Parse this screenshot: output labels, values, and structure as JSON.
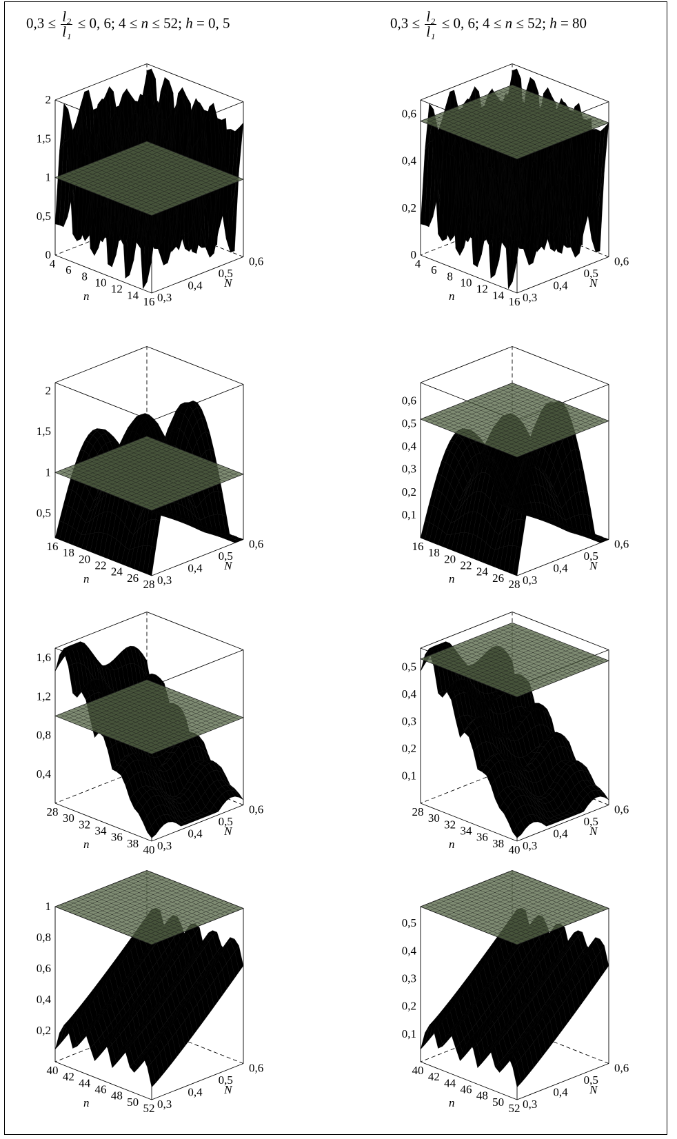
{
  "headers": [
    {
      "prefix": "0,3 ≤ ",
      "num": "l₂",
      "den": "l₁",
      "suffix": " ≤ 0, 6;   4 ≤ ",
      "nvar": "n",
      "mid": " ≤ 52;   ",
      "hvar": "h",
      "hval": " = 0, 5"
    },
    {
      "prefix": "0,3 ≤ ",
      "num": "l₂",
      "den": "l₁",
      "suffix": " ≤ 0, 6;   4 ≤ ",
      "nvar": "n",
      "mid": " ≤ 52;   ",
      "hvar": "h",
      "hval": " = 80"
    }
  ],
  "chart_data": [
    {
      "type": "surface3d",
      "column": "h = 0,5",
      "xlabel": "n",
      "ylabel": "N",
      "x_ticks": [
        "4",
        "6",
        "8",
        "10",
        "12",
        "14",
        "16"
      ],
      "y_ticks": [
        "0,3",
        "0,4",
        "0,5",
        "0,6"
      ],
      "z_ticks": [
        "0",
        "0,5",
        "1",
        "1,5",
        "2"
      ],
      "plane_z": 1.0,
      "zlim": [
        0,
        2
      ],
      "shape": "peaks",
      "colors": [
        "#3a3a7a",
        "#c94b6a",
        "#56d64a"
      ]
    },
    {
      "type": "surface3d",
      "column": "h = 80",
      "xlabel": "n",
      "ylabel": "N",
      "x_ticks": [
        "4",
        "6",
        "8",
        "10",
        "12",
        "14",
        "16"
      ],
      "y_ticks": [
        "0,3",
        "0,4",
        "0,5",
        "0,6"
      ],
      "z_ticks": [
        "0",
        "0,2",
        "0,4",
        "0,6"
      ],
      "plane_z": 0.57,
      "zlim": [
        0,
        0.66
      ],
      "shape": "peaks",
      "colors": [
        "#4a3a8a",
        "#c85a80",
        "#6ad66a"
      ]
    },
    {
      "type": "surface3d",
      "column": "h = 0,5",
      "xlabel": "n",
      "ylabel": "N",
      "x_ticks": [
        "16",
        "18",
        "20",
        "22",
        "24",
        "26",
        "28"
      ],
      "y_ticks": [
        "0,3",
        "0,4",
        "0,5",
        "0,6"
      ],
      "z_ticks": [
        "0,5",
        "1",
        "1,5",
        "2"
      ],
      "plane_z": 1.0,
      "zlim": [
        0.2,
        2.1
      ],
      "shape": "arches",
      "colors": [
        "#3a3a7a",
        "#9a7aa0",
        "#5ad65a"
      ]
    },
    {
      "type": "surface3d",
      "column": "h = 80",
      "xlabel": "n",
      "ylabel": "N",
      "x_ticks": [
        "16",
        "18",
        "20",
        "22",
        "24",
        "26",
        "28"
      ],
      "y_ticks": [
        "0,3",
        "0,4",
        "0,5",
        "0,6"
      ],
      "z_ticks": [
        "0,1",
        "0,2",
        "0,3",
        "0,4",
        "0,5",
        "0,6"
      ],
      "plane_z": 0.52,
      "zlim": [
        0,
        0.68
      ],
      "shape": "arches",
      "colors": [
        "#3a3a7a",
        "#8a6aa0",
        "#5ad65a"
      ]
    },
    {
      "type": "surface3d",
      "column": "h = 0,5",
      "xlabel": "n",
      "ylabel": "N",
      "x_ticks": [
        "28",
        "30",
        "32",
        "34",
        "36",
        "38",
        "40"
      ],
      "y_ticks": [
        "0,3",
        "0,4",
        "0,5",
        "0,6"
      ],
      "z_ticks": [
        "0,4",
        "0,8",
        "1,2",
        "1,6"
      ],
      "plane_z": 1.0,
      "zlim": [
        0.1,
        1.7
      ],
      "shape": "decay",
      "colors": [
        "#2e4a7a",
        "#7a5a4a",
        "#6ad64a"
      ]
    },
    {
      "type": "surface3d",
      "column": "h = 80",
      "xlabel": "n",
      "ylabel": "N",
      "x_ticks": [
        "28",
        "30",
        "32",
        "34",
        "36",
        "38",
        "40"
      ],
      "y_ticks": [
        "0,3",
        "0,4",
        "0,5",
        "0,6"
      ],
      "z_ticks": [
        "0,1",
        "0,2",
        "0,3",
        "0,4",
        "0,5"
      ],
      "plane_z": 0.53,
      "zlim": [
        0,
        0.57
      ],
      "shape": "decay",
      "colors": [
        "#2e4a7a",
        "#7a5a4a",
        "#6ad64a"
      ]
    },
    {
      "type": "surface3d",
      "column": "h = 0,5",
      "xlabel": "n",
      "ylabel": "N",
      "x_ticks": [
        "40",
        "42",
        "44",
        "46",
        "48",
        "50",
        "52"
      ],
      "y_ticks": [
        "0,3",
        "0,4",
        "0,5",
        "0,6"
      ],
      "z_ticks": [
        "0,2",
        "0,4",
        "0,6",
        "0,8",
        "1"
      ],
      "plane_z": 1.0,
      "zlim": [
        0,
        1.0
      ],
      "shape": "ridge",
      "colors": [
        "#3a4a6a",
        "#6a5a4a",
        "#6ad64a"
      ]
    },
    {
      "type": "surface3d",
      "column": "h = 80",
      "xlabel": "n",
      "ylabel": "N",
      "x_ticks": [
        "40",
        "42",
        "44",
        "46",
        "48",
        "50",
        "52"
      ],
      "y_ticks": [
        "0,3",
        "0,4",
        "0,5",
        "0,6"
      ],
      "z_ticks": [
        "0,1",
        "0,2",
        "0,3",
        "0,4",
        "0,5"
      ],
      "plane_z": 0.56,
      "zlim": [
        0,
        0.56
      ],
      "shape": "ridge",
      "colors": [
        "#3a4a6a",
        "#6a5a4a",
        "#6ad64a"
      ]
    }
  ]
}
